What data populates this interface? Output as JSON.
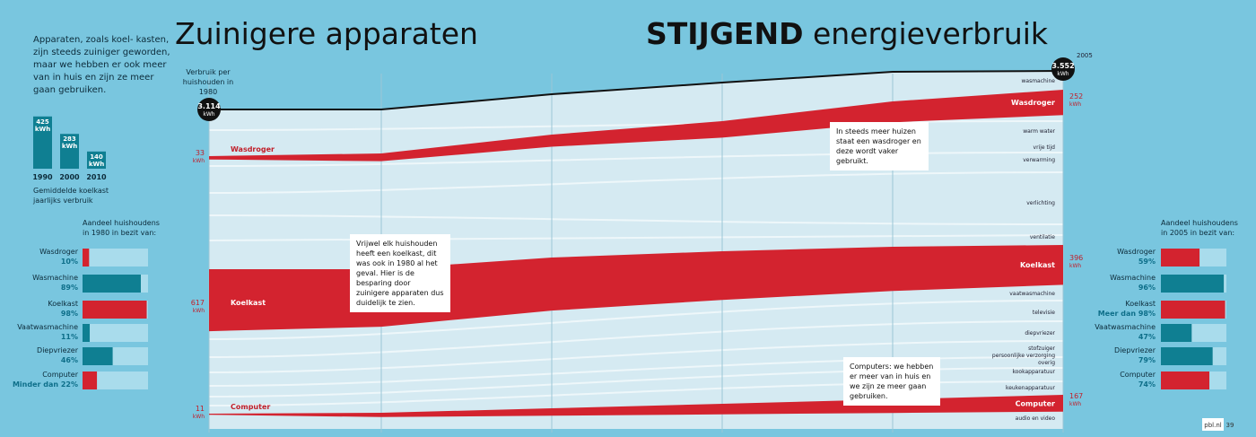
{
  "header": {
    "title_left": "Zuinigere apparaten",
    "title_right_bold": "STIJGEND",
    "title_right": "energieverbruik"
  },
  "intro": "Apparaten, zoals koel- kasten, zijn steeds zuiniger geworden, maar we hebben er ook meer van in huis en zijn ze meer gaan gebruiken.",
  "fridge": {
    "bars": [
      {
        "year": "1990",
        "value": 425,
        "label": "425 kWh"
      },
      {
        "year": "2000",
        "value": 283,
        "label": "283 kWh"
      },
      {
        "year": "2010",
        "value": 140,
        "label": "140 kWh"
      }
    ],
    "caption": "Gemiddelde koelkast jaarlijks verbruik"
  },
  "ownership_1980": {
    "heading": "Aandeel huishoudens in 1980 in bezit van:",
    "rows": [
      {
        "name": "Wasdroger",
        "value": 10,
        "label": "10%",
        "color": "#d3232f"
      },
      {
        "name": "Wasmachine",
        "value": 89,
        "label": "89%",
        "color": "#0f7f92"
      },
      {
        "name": "Koelkast",
        "value": 98,
        "label": "98%",
        "color": "#d3232f"
      },
      {
        "name": "Vaatwasmachine",
        "value": 11,
        "label": "11%",
        "color": "#0f7f92"
      },
      {
        "name": "Diepvriezer",
        "value": 46,
        "label": "46%",
        "color": "#0f7f92"
      },
      {
        "name": "Computer",
        "value": 22,
        "label": "Minder dan 22%",
        "color": "#d3232f"
      }
    ]
  },
  "ownership_2005": {
    "heading": "Aandeel huishoudens in 2005 in bezit van:",
    "rows": [
      {
        "name": "Wasdroger",
        "value": 59,
        "label": "59%",
        "color": "#d3232f"
      },
      {
        "name": "Wasmachine",
        "value": 96,
        "label": "96%",
        "color": "#0f7f92"
      },
      {
        "name": "Koelkast",
        "value": 98,
        "label": "Meer dan 98%",
        "color": "#d3232f"
      },
      {
        "name": "Vaatwasmachine",
        "value": 47,
        "label": "47%",
        "color": "#0f7f92"
      },
      {
        "name": "Diepvriezer",
        "value": 79,
        "label": "79%",
        "color": "#0f7f92"
      },
      {
        "name": "Computer",
        "value": 74,
        "label": "74%",
        "color": "#d3232f"
      }
    ]
  },
  "flow": {
    "start_caption": "Verbruik per huishouden in 1980",
    "end_caption": "2005",
    "start_total": {
      "value": 3114,
      "label": "3.114"
    },
    "end_total": {
      "value": 3552,
      "label": "3.552"
    },
    "unit": "kWh",
    "highlights": [
      {
        "name": "Wasdroger",
        "start": 33,
        "end": 252
      },
      {
        "name": "Koelkast",
        "start": 617,
        "end": 396
      },
      {
        "name": "Computer",
        "start": 11,
        "end": 167
      }
    ],
    "categories": [
      "wasmachine",
      "warm water",
      "vrije tijd",
      "verwarming",
      "verlichting",
      "ventilatie",
      "vaatwasmachine",
      "televisie",
      "diepvriezer",
      "stofzuiger",
      "persoonlijke verzorging",
      "overig",
      "kookapparatuur",
      "keukenapparatuur",
      "audio en video"
    ]
  },
  "callouts": [
    "Vrijwel elk huishouden heeft een koelkast, dit was ook in 1980 al het geval. Hier is de besparing door zuinigere apparaten dus duidelijk te zien.",
    "In steeds meer huizen staat een wasdroger en deze wordt vaker gebruikt.",
    "Computers: we hebben er meer van in huis en we zijn ze meer gaan gebruiken."
  ],
  "footer": {
    "site": "pbl.nl",
    "page": "39"
  }
}
